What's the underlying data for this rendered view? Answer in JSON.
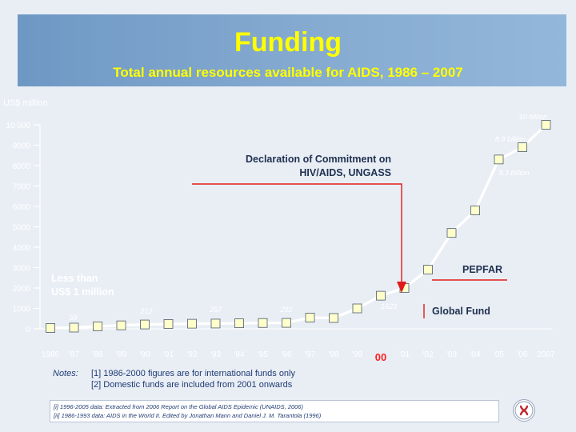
{
  "title": "Funding",
  "subtitle": "Total annual resources available for AIDS, 1986 – 2007",
  "chart_data": {
    "type": "line",
    "ylabel": "US$ million",
    "ylim": [
      0,
      10000
    ],
    "y_ticks": [
      0,
      1000,
      2000,
      3000,
      4000,
      5000,
      6000,
      7000,
      8000,
      9000,
      10000
    ],
    "y_tick_labels": [
      "0",
      "1000",
      "2000",
      "3000",
      "4000",
      "5000",
      "6000",
      "7000",
      "8000",
      "9000",
      "10 000"
    ],
    "categories": [
      "1986",
      "'87",
      "'88",
      "'89",
      "'90",
      "'91",
      "'92",
      "'93",
      "'94",
      "'95",
      "'96",
      "'97",
      "'98",
      "'99",
      "00",
      "'01",
      "'02",
      "'03",
      "'04",
      "'05",
      "'06",
      "2007"
    ],
    "highlight_category": 14,
    "highlight_color": "#ff2020",
    "values": [
      40,
      59,
      120,
      170,
      212,
      235,
      250,
      257,
      270,
      285,
      292,
      550,
      530,
      1000,
      1623,
      2000,
      2900,
      4700,
      5800,
      8300,
      8900,
      10000
    ],
    "marker_color": "#ffffcc",
    "line_color": "#ffffff",
    "point_labels": [
      {
        "index": 1,
        "text": "59"
      },
      {
        "index": 4,
        "text": "212"
      },
      {
        "index": 7,
        "text": "257"
      },
      {
        "index": 10,
        "text": "292"
      },
      {
        "index": 14,
        "text": "1623"
      },
      {
        "index": 19,
        "text": "8.3 billion"
      },
      {
        "index": 20,
        "text": "8.9 billion"
      },
      {
        "index": 21,
        "text": "10 billion"
      }
    ],
    "annotations": {
      "declaration": [
        "Declaration of Commitment on",
        "HIV/AIDS, UNGASS"
      ],
      "less_than": [
        "Less than",
        "US$ 1 million"
      ],
      "pepfar": "PEPFAR",
      "global_fund": "Global Fund"
    },
    "annotation_color": "#e01a1a"
  },
  "notes": {
    "label": "Notes:",
    "lines": [
      "[1] 1986-2000 figures are for international funds only",
      "[2] Domestic funds are included from 2001 onwards"
    ]
  },
  "references": [
    "[i] 1996-2005 data: Extracted from 2006 Report on the Global AIDS Epidemic (UNAIDS, 2006)",
    "[ii] 1986-1993 data: AIDS in the World II. Edited by Jonathan Mann and Daniel J. M. Tarantola (1996)"
  ]
}
